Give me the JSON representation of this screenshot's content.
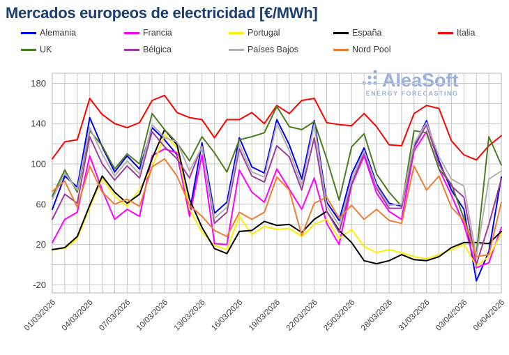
{
  "title": "Mercados europeos de electricidad [€/MWh]",
  "logo": {
    "text": "AleaSoft",
    "subtext": "ENERGY FORECASTING",
    "color": "#8fa9d6"
  },
  "axes": {
    "y_tick_labels": [
      "180",
      "140",
      "100",
      "60",
      "20",
      "-20"
    ]
  },
  "chart_data": {
    "type": "line",
    "title": "Mercados europeos de electricidad [€/MWh]",
    "xlabel": "",
    "ylabel": "€/MWh",
    "ylim": [
      -28,
      190
    ],
    "grid": true,
    "gridline_step": 20,
    "ylabel_step": 40,
    "legend_position": "top",
    "x_tick_every": 3,
    "x": [
      "01/03/2026",
      "02/03/2026",
      "03/03/2026",
      "04/03/2026",
      "05/03/2026",
      "06/03/2026",
      "07/03/2026",
      "08/03/2026",
      "09/03/2026",
      "10/03/2026",
      "11/03/2026",
      "12/03/2026",
      "13/03/2026",
      "14/03/2026",
      "15/03/2026",
      "16/03/2026",
      "17/03/2026",
      "18/03/2026",
      "19/03/2026",
      "20/03/2026",
      "21/03/2026",
      "22/03/2026",
      "23/03/2026",
      "24/03/2026",
      "25/03/2026",
      "26/03/2026",
      "27/03/2026",
      "28/03/2026",
      "29/03/2026",
      "30/03/2026",
      "31/03/2026",
      "01/04/2026",
      "02/04/2026",
      "03/04/2026",
      "04/04/2026",
      "05/04/2026",
      "06/04/2026"
    ],
    "series": [
      {
        "name": "Alemania",
        "color": "#0000ee",
        "values": [
          55,
          88,
          77,
          146,
          117,
          92,
          108,
          95,
          136,
          124,
          109,
          52,
          121,
          51,
          62,
          126,
          97,
          91,
          144,
          119,
          85,
          143,
          62,
          44,
          90,
          116,
          80,
          61,
          58,
          118,
          143,
          103,
          74,
          55,
          -16,
          13,
          87
        ]
      },
      {
        "name": "Francia",
        "color": "#ff00ff",
        "values": [
          22,
          45,
          52,
          108,
          74,
          45,
          55,
          48,
          108,
          115,
          111,
          48,
          109,
          21,
          20,
          94,
          72,
          62,
          95,
          75,
          55,
          86,
          41,
          20,
          79,
          108,
          71,
          53,
          45,
          113,
          132,
          95,
          69,
          40,
          -3,
          2,
          37
        ]
      },
      {
        "name": "Portugal",
        "color": "#ffee00",
        "values": [
          15,
          16,
          26,
          57,
          86,
          68,
          58,
          75,
          96,
          129,
          116,
          55,
          32,
          19,
          15,
          48,
          30,
          38,
          35,
          36,
          28,
          40,
          45,
          26,
          35,
          18,
          12,
          15,
          12,
          8,
          6,
          10,
          15,
          20,
          -1,
          8,
          31
        ]
      },
      {
        "name": "España",
        "color": "#000000",
        "values": [
          15,
          17,
          28,
          59,
          88,
          72,
          61,
          70,
          105,
          134,
          119,
          65,
          37,
          16,
          11,
          33,
          34,
          43,
          39,
          40,
          32,
          45,
          53,
          34,
          22,
          4,
          1,
          4,
          10,
          5,
          4,
          8,
          17,
          22,
          22,
          21,
          33
        ]
      },
      {
        "name": "Italia",
        "color": "#ff0000",
        "values": [
          105,
          122,
          124,
          165,
          149,
          140,
          136,
          141,
          163,
          168,
          151,
          146,
          144,
          126,
          144,
          144,
          151,
          140,
          158,
          150,
          163,
          165,
          141,
          139,
          138,
          150,
          137,
          119,
          118,
          150,
          158,
          155,
          123,
          109,
          104,
          118,
          128
        ]
      },
      {
        "name": "UK",
        "color": "#4c7c22",
        "values": [
          68,
          94,
          72,
          133,
          118,
          95,
          110,
          100,
          150,
          134,
          121,
          103,
          127,
          111,
          92,
          124,
          127,
          131,
          157,
          137,
          134,
          142,
          105,
          64,
          117,
          130,
          90,
          72,
          58,
          133,
          131,
          95,
          80,
          46,
          10,
          127,
          99
        ]
      },
      {
        "name": "Bélgica",
        "color": "#9e3a9e",
        "values": [
          45,
          70,
          61,
          127,
          100,
          84,
          98,
          86,
          132,
          117,
          105,
          86,
          118,
          41,
          52,
          115,
          88,
          82,
          118,
          107,
          74,
          126,
          53,
          32,
          80,
          111,
          76,
          56,
          56,
          116,
          139,
          100,
          78,
          67,
          0,
          40,
          85
        ]
      },
      {
        "name": "Países Bajos",
        "color": "#b0b0b0",
        "values": [
          65,
          91,
          74,
          136,
          110,
          88,
          103,
          90,
          139,
          126,
          122,
          93,
          117,
          46,
          57,
          120,
          92,
          87,
          140,
          113,
          79,
          139,
          58,
          39,
          85,
          113,
          78,
          59,
          60,
          120,
          141,
          107,
          85,
          78,
          8,
          85,
          93
        ]
      },
      {
        "name": "Nord Pool",
        "color": "#ed7d31",
        "values": [
          73,
          83,
          57,
          98,
          72,
          60,
          65,
          58,
          97,
          105,
          88,
          59,
          48,
          34,
          28,
          52,
          45,
          52,
          87,
          74,
          29,
          61,
          67,
          46,
          59,
          45,
          55,
          44,
          41,
          98,
          74,
          88,
          57,
          44,
          8,
          10,
          62
        ]
      }
    ]
  }
}
